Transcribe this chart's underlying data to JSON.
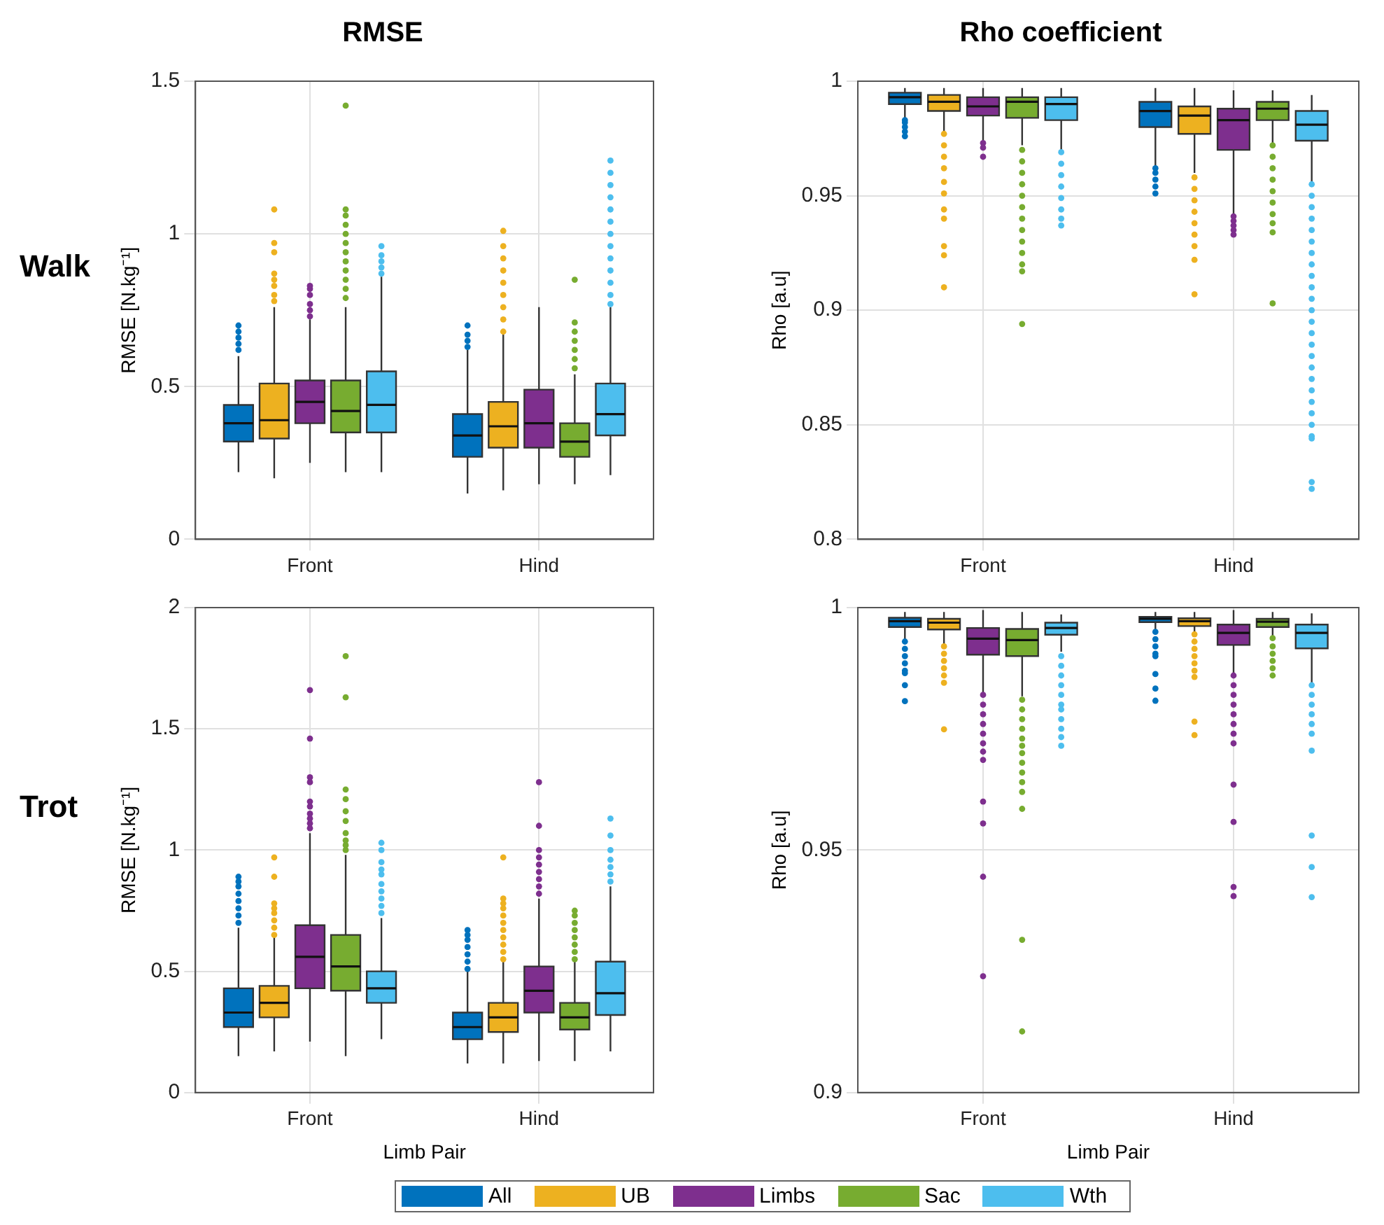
{
  "chart_data": [
    {
      "type": "box",
      "title": "RMSE",
      "ylabel": "RMSE [N.kg⁻¹]",
      "annotations": [
        "Walk"
      ],
      "categories": [
        "Front",
        "Hind"
      ],
      "ylim": [
        0,
        1.5
      ],
      "yticks": [
        0,
        0.5,
        1,
        1.5
      ],
      "grid": true,
      "series": [
        {
          "color": "#0072bd",
          "boxes": [
            {
              "low": 0.22,
              "q1": 0.32,
              "median": 0.38,
              "q3": 0.44,
              "high": 0.6,
              "outliers": [
                0.62,
                0.64,
                0.66,
                0.68,
                0.7
              ]
            },
            {
              "low": 0.15,
              "q1": 0.27,
              "median": 0.34,
              "q3": 0.41,
              "high": 0.62,
              "outliers": [
                0.63,
                0.65,
                0.67,
                0.7
              ]
            }
          ]
        },
        {
          "color": "#edb120",
          "boxes": [
            {
              "low": 0.2,
              "q1": 0.33,
              "median": 0.39,
              "q3": 0.51,
              "high": 0.76,
              "outliers": [
                0.78,
                0.8,
                0.83,
                0.85,
                0.87,
                0.94,
                0.97,
                1.08
              ]
            },
            {
              "low": 0.16,
              "q1": 0.3,
              "median": 0.37,
              "q3": 0.45,
              "high": 0.67,
              "outliers": [
                0.68,
                0.72,
                0.76,
                0.8,
                0.84,
                0.88,
                0.92,
                0.96,
                1.01
              ]
            }
          ]
        },
        {
          "color": "#7e2f8e",
          "boxes": [
            {
              "low": 0.25,
              "q1": 0.38,
              "median": 0.45,
              "q3": 0.52,
              "high": 0.72,
              "outliers": [
                0.73,
                0.75,
                0.77,
                0.8,
                0.82,
                0.83
              ]
            },
            {
              "low": 0.18,
              "q1": 0.3,
              "median": 0.38,
              "q3": 0.49,
              "high": 0.76
            }
          ]
        },
        {
          "color": "#77ac30",
          "boxes": [
            {
              "low": 0.22,
              "q1": 0.35,
              "median": 0.42,
              "q3": 0.52,
              "high": 0.76,
              "outliers": [
                0.79,
                0.82,
                0.85,
                0.88,
                0.91,
                0.94,
                0.97,
                1.0,
                1.03,
                1.06,
                1.08,
                1.42
              ]
            },
            {
              "low": 0.18,
              "q1": 0.27,
              "median": 0.32,
              "q3": 0.38,
              "high": 0.54,
              "outliers": [
                0.56,
                0.59,
                0.62,
                0.65,
                0.68,
                0.71,
                0.85
              ]
            }
          ]
        },
        {
          "color": "#4dbeee",
          "boxes": [
            {
              "low": 0.22,
              "q1": 0.35,
              "median": 0.44,
              "q3": 0.55,
              "high": 0.86,
              "outliers": [
                0.87,
                0.89,
                0.91,
                0.93,
                0.96
              ]
            },
            {
              "low": 0.21,
              "q1": 0.34,
              "median": 0.41,
              "q3": 0.51,
              "high": 0.76,
              "outliers": [
                0.77,
                0.8,
                0.84,
                0.88,
                0.92,
                0.96,
                1.0,
                1.04,
                1.08,
                1.12,
                1.16,
                1.2,
                1.24
              ]
            }
          ]
        }
      ]
    },
    {
      "type": "box",
      "title": "Rho coefficient",
      "ylabel": "Rho [a.u]",
      "categories": [
        "Front",
        "Hind"
      ],
      "ylim": [
        0.8,
        1
      ],
      "yticks": [
        0.8,
        0.85,
        0.9,
        0.95,
        1
      ],
      "grid": true,
      "series": [
        {
          "color": "#0072bd",
          "boxes": [
            {
              "low": 0.984,
              "q1": 0.99,
              "median": 0.993,
              "q3": 0.995,
              "high": 0.997,
              "outliers": [
                0.976,
                0.978,
                0.98,
                0.982,
                0.983
              ]
            },
            {
              "low": 0.963,
              "q1": 0.98,
              "median": 0.987,
              "q3": 0.991,
              "high": 0.997,
              "outliers": [
                0.951,
                0.954,
                0.957,
                0.96,
                0.962
              ]
            }
          ]
        },
        {
          "color": "#edb120",
          "boxes": [
            {
              "low": 0.978,
              "q1": 0.987,
              "median": 0.991,
              "q3": 0.994,
              "high": 0.997,
              "outliers": [
                0.977,
                0.972,
                0.967,
                0.962,
                0.956,
                0.951,
                0.944,
                0.94,
                0.928,
                0.924,
                0.91
              ]
            },
            {
              "low": 0.96,
              "q1": 0.977,
              "median": 0.985,
              "q3": 0.989,
              "high": 0.997,
              "outliers": [
                0.958,
                0.953,
                0.948,
                0.943,
                0.938,
                0.933,
                0.928,
                0.922,
                0.907
              ]
            }
          ]
        },
        {
          "color": "#7e2f8e",
          "boxes": [
            {
              "low": 0.974,
              "q1": 0.985,
              "median": 0.989,
              "q3": 0.993,
              "high": 0.997,
              "outliers": [
                0.973,
                0.971,
                0.967
              ]
            },
            {
              "low": 0.942,
              "q1": 0.97,
              "median": 0.983,
              "q3": 0.988,
              "high": 0.996,
              "outliers": [
                0.941,
                0.939,
                0.937,
                0.935,
                0.933
              ]
            }
          ]
        },
        {
          "color": "#77ac30",
          "boxes": [
            {
              "low": 0.972,
              "q1": 0.984,
              "median": 0.991,
              "q3": 0.993,
              "high": 0.997,
              "outliers": [
                0.97,
                0.965,
                0.96,
                0.955,
                0.95,
                0.945,
                0.94,
                0.935,
                0.93,
                0.925,
                0.92,
                0.917,
                0.894
              ]
            },
            {
              "low": 0.973,
              "q1": 0.983,
              "median": 0.988,
              "q3": 0.991,
              "high": 0.996,
              "outliers": [
                0.972,
                0.967,
                0.962,
                0.957,
                0.952,
                0.947,
                0.942,
                0.938,
                0.934,
                0.903
              ]
            }
          ]
        },
        {
          "color": "#4dbeee",
          "boxes": [
            {
              "low": 0.97,
              "q1": 0.983,
              "median": 0.99,
              "q3": 0.993,
              "high": 0.997,
              "outliers": [
                0.969,
                0.964,
                0.959,
                0.954,
                0.949,
                0.944,
                0.94,
                0.937
              ]
            },
            {
              "low": 0.956,
              "q1": 0.974,
              "median": 0.981,
              "q3": 0.987,
              "high": 0.994,
              "outliers": [
                0.955,
                0.95,
                0.945,
                0.94,
                0.935,
                0.93,
                0.925,
                0.92,
                0.915,
                0.91,
                0.905,
                0.9,
                0.895,
                0.89,
                0.885,
                0.88,
                0.875,
                0.87,
                0.865,
                0.86,
                0.855,
                0.85,
                0.845,
                0.844,
                0.825,
                0.822
              ]
            }
          ]
        }
      ]
    },
    {
      "type": "box",
      "ylabel": "RMSE [N.kg⁻¹]",
      "xlabel": "Limb Pair",
      "annotations": [
        "Trot"
      ],
      "categories": [
        "Front",
        "Hind"
      ],
      "ylim": [
        0,
        2
      ],
      "yticks": [
        0,
        0.5,
        1,
        1.5,
        2
      ],
      "grid": true,
      "series": [
        {
          "color": "#0072bd",
          "boxes": [
            {
              "low": 0.15,
              "q1": 0.27,
              "median": 0.33,
              "q3": 0.43,
              "high": 0.68,
              "outliers": [
                0.7,
                0.73,
                0.76,
                0.79,
                0.82,
                0.85,
                0.87,
                0.89
              ]
            },
            {
              "low": 0.12,
              "q1": 0.22,
              "median": 0.27,
              "q3": 0.33,
              "high": 0.5,
              "outliers": [
                0.51,
                0.54,
                0.57,
                0.6,
                0.63,
                0.65,
                0.67
              ]
            }
          ]
        },
        {
          "color": "#edb120",
          "boxes": [
            {
              "low": 0.17,
              "q1": 0.31,
              "median": 0.37,
              "q3": 0.44,
              "high": 0.64,
              "outliers": [
                0.65,
                0.68,
                0.71,
                0.74,
                0.76,
                0.78,
                0.89,
                0.97
              ]
            },
            {
              "low": 0.12,
              "q1": 0.25,
              "median": 0.31,
              "q3": 0.37,
              "high": 0.54,
              "outliers": [
                0.55,
                0.58,
                0.61,
                0.64,
                0.67,
                0.7,
                0.73,
                0.76,
                0.78,
                0.8,
                0.97
              ]
            }
          ]
        },
        {
          "color": "#7e2f8e",
          "boxes": [
            {
              "low": 0.21,
              "q1": 0.43,
              "median": 0.56,
              "q3": 0.69,
              "high": 1.07,
              "outliers": [
                1.09,
                1.11,
                1.13,
                1.15,
                1.18,
                1.2,
                1.28,
                1.3,
                1.46,
                1.66
              ]
            },
            {
              "low": 0.13,
              "q1": 0.33,
              "median": 0.42,
              "q3": 0.52,
              "high": 0.8,
              "outliers": [
                0.82,
                0.85,
                0.88,
                0.91,
                0.94,
                0.97,
                1.0,
                1.1,
                1.28
              ]
            }
          ]
        },
        {
          "color": "#77ac30",
          "boxes": [
            {
              "low": 0.15,
              "q1": 0.42,
              "median": 0.52,
              "q3": 0.65,
              "high": 0.98,
              "outliers": [
                1.0,
                1.02,
                1.04,
                1.07,
                1.12,
                1.16,
                1.21,
                1.25,
                1.63,
                1.8
              ]
            },
            {
              "low": 0.13,
              "q1": 0.26,
              "median": 0.31,
              "q3": 0.37,
              "high": 0.54,
              "outliers": [
                0.55,
                0.58,
                0.61,
                0.64,
                0.67,
                0.7,
                0.73,
                0.75
              ]
            }
          ]
        },
        {
          "color": "#4dbeee",
          "boxes": [
            {
              "low": 0.22,
              "q1": 0.37,
              "median": 0.43,
              "q3": 0.5,
              "high": 0.72,
              "outliers": [
                0.74,
                0.77,
                0.8,
                0.83,
                0.86,
                0.9,
                0.92,
                0.95,
                1.0,
                1.03
              ]
            },
            {
              "low": 0.17,
              "q1": 0.32,
              "median": 0.41,
              "q3": 0.54,
              "high": 0.85,
              "outliers": [
                0.87,
                0.9,
                0.93,
                0.96,
                1.0,
                1.06,
                1.13
              ]
            }
          ]
        }
      ]
    },
    {
      "type": "box",
      "ylabel": "Rho [a.u]",
      "xlabel": "Limb Pair",
      "legend": "bottom",
      "categories": [
        "Front",
        "Hind"
      ],
      "ylim": [
        0.9,
        1
      ],
      "yticks": [
        0.9,
        0.95,
        1
      ],
      "grid": true,
      "series": [
        {
          "name": "All",
          "color": "#0072bd",
          "boxes": [
            {
              "low": 0.9931,
              "q1": 0.996,
              "median": 0.9972,
              "q3": 0.9979,
              "high": 0.9991,
              "outliers": [
                0.993,
                0.9915,
                0.99,
                0.9885,
                0.987,
                0.9865,
                0.984,
                0.9807
              ]
            },
            {
              "low": 0.9953,
              "q1": 0.997,
              "median": 0.9977,
              "q3": 0.9981,
              "high": 0.9991,
              "outliers": [
                0.995,
                0.9935,
                0.992,
                0.9905,
                0.99,
                0.9863,
                0.9833,
                0.9808
              ]
            }
          ]
        },
        {
          "name": "UB",
          "color": "#edb120",
          "boxes": [
            {
              "low": 0.9925,
              "q1": 0.9955,
              "median": 0.9969,
              "q3": 0.9977,
              "high": 0.9991,
              "outliers": [
                0.992,
                0.9905,
                0.989,
                0.9875,
                0.986,
                0.9845,
                0.9749
              ]
            },
            {
              "low": 0.9946,
              "q1": 0.9962,
              "median": 0.9972,
              "q3": 0.9978,
              "high": 0.9991,
              "outliers": [
                0.9945,
                0.993,
                0.9915,
                0.99,
                0.9885,
                0.987,
                0.9857,
                0.9765,
                0.9737
              ]
            }
          ]
        },
        {
          "name": "Limbs",
          "color": "#7e2f8e",
          "boxes": [
            {
              "low": 0.982,
              "q1": 0.9903,
              "median": 0.9936,
              "q3": 0.9958,
              "high": 0.9995,
              "outliers": [
                0.982,
                0.98,
                0.978,
                0.976,
                0.974,
                0.972,
                0.9703,
                0.9686,
                0.96,
                0.9555,
                0.9445,
                0.924
              ]
            },
            {
              "low": 0.9864,
              "q1": 0.9923,
              "median": 0.9948,
              "q3": 0.9965,
              "high": 0.9995,
              "outliers": [
                0.986,
                0.984,
                0.982,
                0.98,
                0.978,
                0.976,
                0.974,
                0.972,
                0.9635,
                0.9558,
                0.9424,
                0.9405
              ]
            }
          ]
        },
        {
          "name": "Sac",
          "color": "#77ac30",
          "boxes": [
            {
              "low": 0.9817,
              "q1": 0.99,
              "median": 0.9933,
              "q3": 0.9956,
              "high": 0.9991,
              "outliers": [
                0.981,
                0.979,
                0.977,
                0.975,
                0.973,
                0.9715,
                0.97,
                0.968,
                0.966,
                0.964,
                0.962,
                0.9585,
                0.9315,
                0.9126
              ]
            },
            {
              "low": 0.9939,
              "q1": 0.996,
              "median": 0.9971,
              "q3": 0.9977,
              "high": 0.9991,
              "outliers": [
                0.9937,
                0.992,
                0.9905,
                0.989,
                0.9875,
                0.986
              ]
            }
          ]
        },
        {
          "name": "Wth",
          "color": "#4dbeee",
          "boxes": [
            {
              "low": 0.9909,
              "q1": 0.9944,
              "median": 0.9958,
              "q3": 0.9969,
              "high": 0.9986,
              "outliers": [
                0.99,
                0.988,
                0.986,
                0.984,
                0.982,
                0.98,
                0.979,
                0.977,
                0.975,
                0.9733,
                0.9715
              ]
            },
            {
              "low": 0.9845,
              "q1": 0.9916,
              "median": 0.9948,
              "q3": 0.9965,
              "high": 0.9988,
              "outliers": [
                0.984,
                0.982,
                0.98,
                0.978,
                0.976,
                0.974,
                0.9705,
                0.953,
                0.9465,
                0.9403
              ]
            }
          ]
        }
      ]
    }
  ]
}
